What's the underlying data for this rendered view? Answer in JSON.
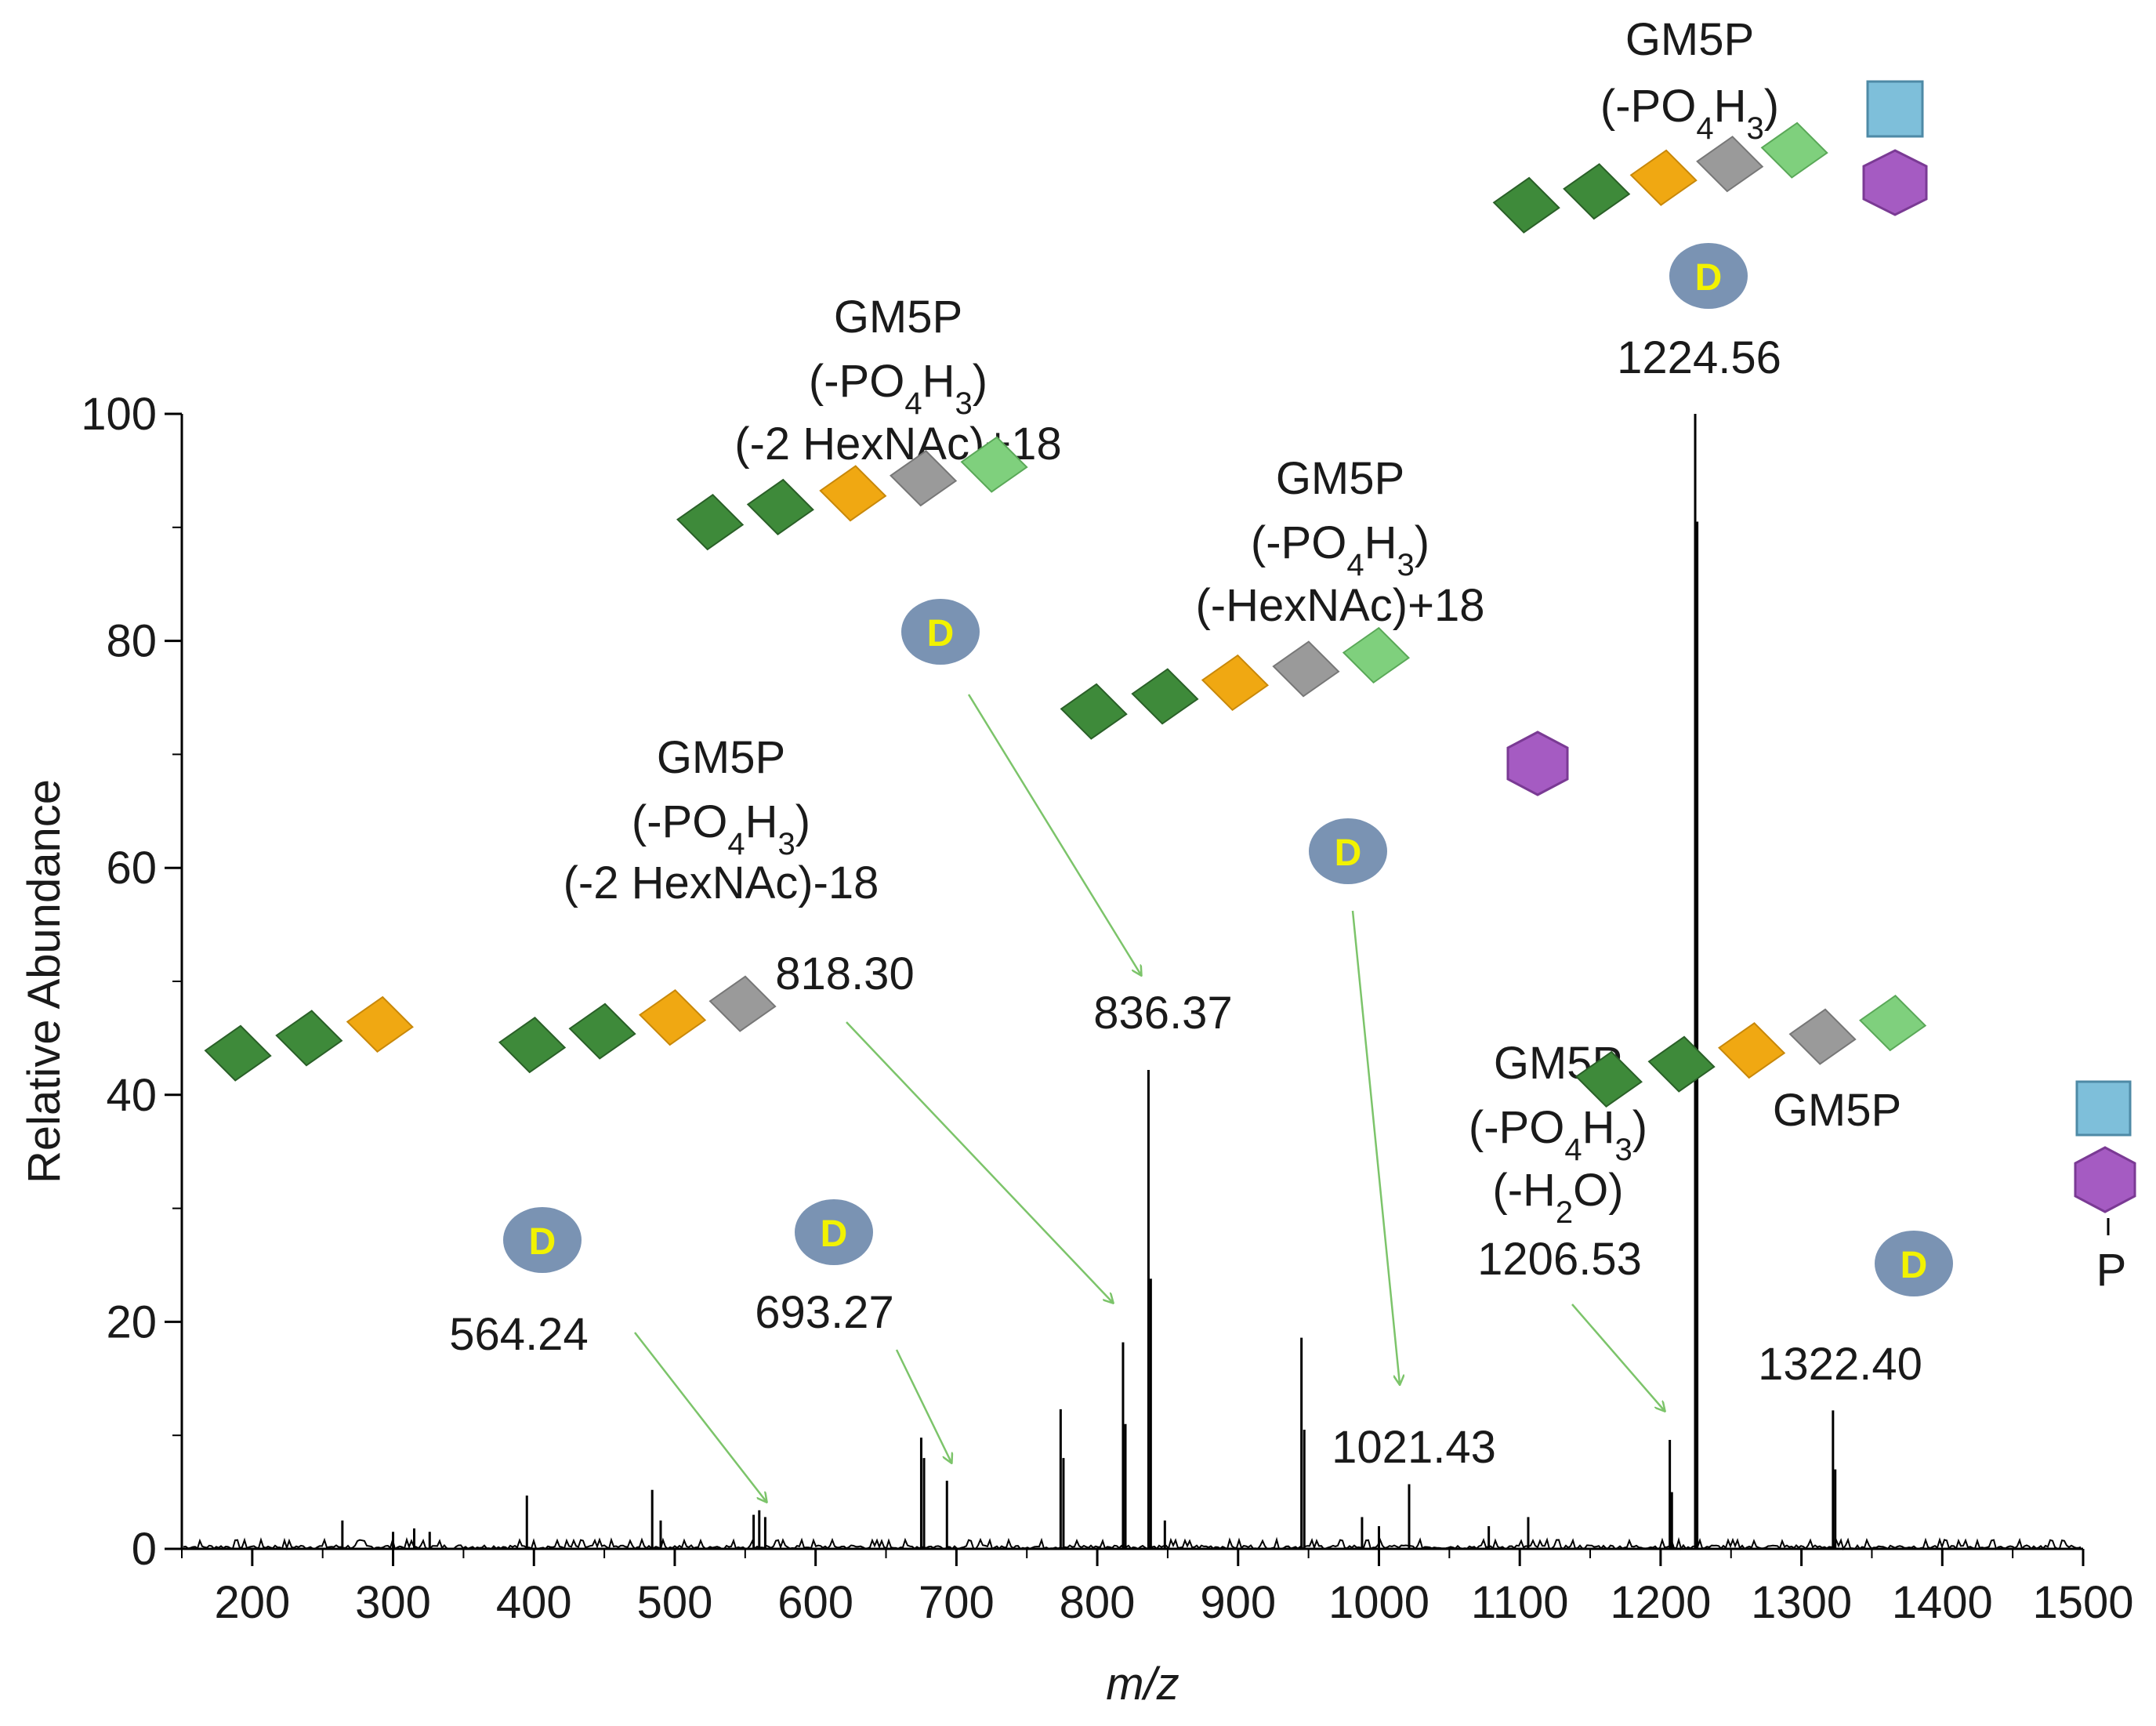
{
  "colors": {
    "axis": "#000000",
    "arrow": "#7cc46a",
    "hexnac": "#3e8a3a",
    "hexnac_light": "#7fd07d",
    "hex_gold": "#f0a812",
    "hex_gray": "#9a9a9a",
    "hex_purple": "#a55bc2",
    "square_blue": "#7ebfda",
    "disaccharide_d": "#7a93b3",
    "d_letter": "#f2f200"
  },
  "chart_data": {
    "type": "line",
    "subtype": "mass-spectrum",
    "xlabel": "m/z",
    "ylabel": "Relative Abundance",
    "xlim": [
      150,
      1500
    ],
    "ylim": [
      0,
      100
    ],
    "x_ticks": [
      "200",
      "300",
      "400",
      "500",
      "600",
      "700",
      "800",
      "900",
      "1000",
      "1100",
      "1200",
      "1300",
      "1400",
      "1500"
    ],
    "y_ticks": [
      "0",
      "20",
      "40",
      "60",
      "80",
      "100"
    ],
    "peaks": [
      {
        "mz": 264,
        "intensity": 2.5
      },
      {
        "mz": 300,
        "intensity": 1.5
      },
      {
        "mz": 315,
        "intensity": 1.8
      },
      {
        "mz": 326,
        "intensity": 1.5
      },
      {
        "mz": 395,
        "intensity": 4.7
      },
      {
        "mz": 484,
        "intensity": 5.2
      },
      {
        "mz": 490,
        "intensity": 2.5
      },
      {
        "mz": 556,
        "intensity": 3.0
      },
      {
        "mz": 560,
        "intensity": 3.4
      },
      {
        "mz": 564.24,
        "intensity": 2.8
      },
      {
        "mz": 675,
        "intensity": 9.8
      },
      {
        "mz": 677,
        "intensity": 8.0
      },
      {
        "mz": 693.27,
        "intensity": 6.0
      },
      {
        "mz": 774,
        "intensity": 12.3
      },
      {
        "mz": 776,
        "intensity": 8.0
      },
      {
        "mz": 818.3,
        "intensity": 18.2
      },
      {
        "mz": 820,
        "intensity": 11.0
      },
      {
        "mz": 836.37,
        "intensity": 42.2
      },
      {
        "mz": 838,
        "intensity": 23.8
      },
      {
        "mz": 848,
        "intensity": 2.5
      },
      {
        "mz": 945,
        "intensity": 18.6
      },
      {
        "mz": 947,
        "intensity": 10.5
      },
      {
        "mz": 988,
        "intensity": 2.8
      },
      {
        "mz": 1000,
        "intensity": 2.0
      },
      {
        "mz": 1021.43,
        "intensity": 5.7
      },
      {
        "mz": 1078,
        "intensity": 2.0
      },
      {
        "mz": 1106,
        "intensity": 2.8
      },
      {
        "mz": 1206.53,
        "intensity": 9.6
      },
      {
        "mz": 1208,
        "intensity": 5.0
      },
      {
        "mz": 1224.56,
        "intensity": 100
      },
      {
        "mz": 1226,
        "intensity": 90.5
      },
      {
        "mz": 1322.4,
        "intensity": 12.2
      },
      {
        "mz": 1324,
        "intensity": 7.0
      }
    ],
    "annotations": [
      {
        "id": "a1224",
        "lines": [
          "GM5P",
          "(-PO",
          "4",
          "H",
          "3",
          ")"
        ],
        "mz_label": "1224.56"
      },
      {
        "id": "a836",
        "title": "GM5P",
        "line2": "(-PO4H3)",
        "line3": "(-2 HexNAc)+18",
        "mz_label": "836.37"
      },
      {
        "id": "a1021",
        "title": "GM5P",
        "line2": "(-PO4H3)",
        "line3": "(-HexNAc)+18",
        "mz_label": "1021.43"
      },
      {
        "id": "a818",
        "title": "GM5P",
        "line2": "(-PO4H3)",
        "line3": "(-2 HexNAc)-18",
        "mz_label": "818.30"
      },
      {
        "id": "a1206",
        "title": "GM5P",
        "line2": "(-PO4H3)",
        "line3": "(-H2O)",
        "mz_label": "1206.53"
      },
      {
        "id": "a1322",
        "title": "GM5P",
        "mz_label": "1322.40",
        "phosphate": "P"
      },
      {
        "id": "a564",
        "mz_label": "564.24"
      },
      {
        "id": "a693",
        "mz_label": "693.27"
      }
    ],
    "glycan_letter": "D"
  },
  "text": {
    "gm5p": "GM5P",
    "po": "(-PO",
    "sub4": "4",
    "h": "H",
    "sub3": "3",
    "close": ")",
    "hexnac2_plus": "(-2 HexNAc)+18",
    "hexnac1_plus": "(-HexNAc)+18",
    "hexnac2_minus": "(-2 HexNAc)-18",
    "h2o_open": "(-H",
    "sub2": "2",
    "h2o_close": "O)",
    "mz_1224": "1224.56",
    "mz_836": "836.37",
    "mz_1021": "1021.43",
    "mz_818": "818.30",
    "mz_1206": "1206.53",
    "mz_1322": "1322.40",
    "mz_564": "564.24",
    "mz_693": "693.27",
    "d": "D",
    "p": "P",
    "ylabel": "Relative Abundance",
    "xlabel": "m/z"
  }
}
